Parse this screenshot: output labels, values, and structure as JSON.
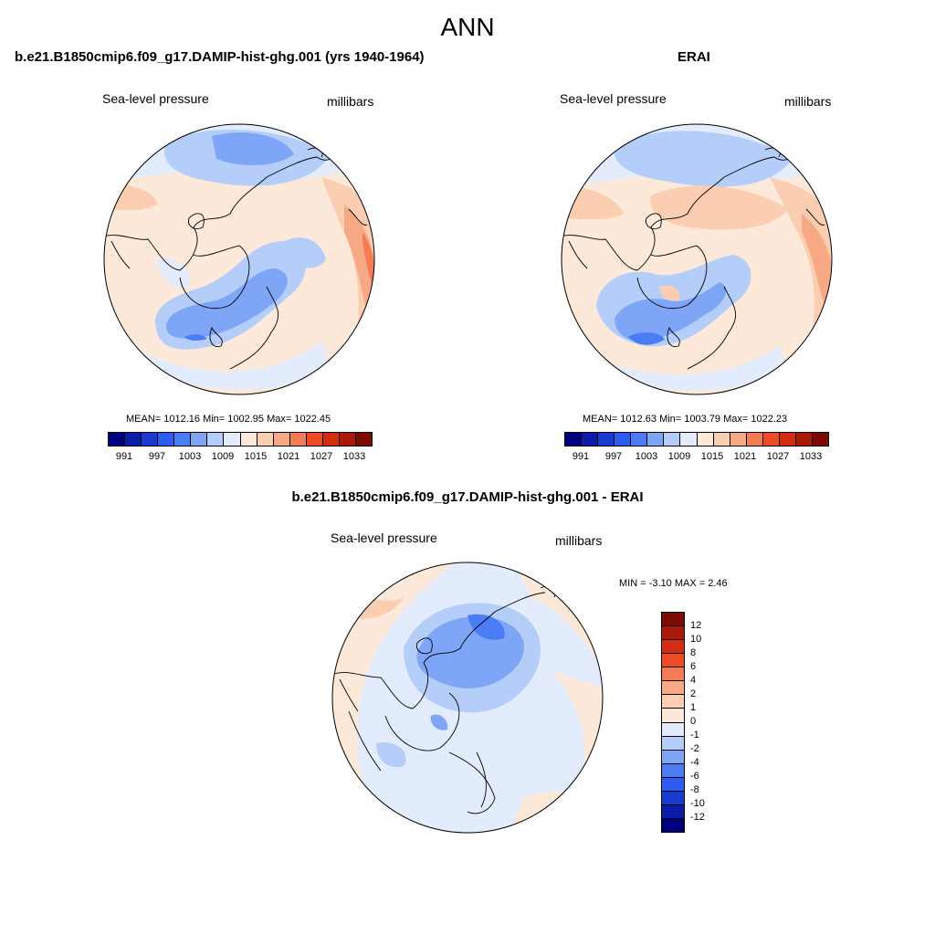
{
  "title": "ANN",
  "panels": [
    {
      "id": "model",
      "title": "b.e21.B1850cmip6.f09_g17.DAMIP-hist-ghg.001 (yrs 1940-1964)",
      "field": "Sea-level pressure",
      "units": "millibars",
      "stats": "MEAN= 1012.16  Min= 1002.95  Max= 1022.45"
    },
    {
      "id": "obs",
      "title": "ERAI",
      "field": "Sea-level pressure",
      "units": "millibars",
      "stats": "MEAN= 1012.63  Min= 1003.79  Max= 1022.23"
    }
  ],
  "difference": {
    "title": "b.e21.B1850cmip6.f09_g17.DAMIP-hist-ghg.001 - ERAI",
    "field": "Sea-level pressure",
    "units": "millibars",
    "stats": "MIN =  -3.10 MAX =   2.46"
  },
  "colorbar_main": {
    "colors": [
      "#00007f",
      "#0c1ca6",
      "#1a3bd0",
      "#2d5cf0",
      "#4a7df5",
      "#7fa6f6",
      "#b4cdf9",
      "#e2ecfc",
      "#fde9da",
      "#fbcdb1",
      "#f7a885",
      "#f57b55",
      "#ee4b26",
      "#d42c10",
      "#ab1a06",
      "#7d0a03"
    ],
    "labels": [
      "991",
      "997",
      "1003",
      "1009",
      "1015",
      "1021",
      "1027",
      "1033"
    ]
  },
  "colorbar_diff": {
    "colors": [
      "#7d0a03",
      "#ab1a06",
      "#d42c10",
      "#ee4b26",
      "#f57b55",
      "#f7a885",
      "#fbcdb1",
      "#fde9da",
      "#e2ecfc",
      "#b4cdf9",
      "#7fa6f6",
      "#4a7df5",
      "#2d5cf0",
      "#1a3bd0",
      "#0c1ca6",
      "#00007f"
    ],
    "labels": [
      "12",
      "10",
      "8",
      "6",
      "4",
      "2",
      "1",
      "0",
      "-1",
      "-2",
      "-4",
      "-6",
      "-8",
      "-10",
      "-12"
    ]
  }
}
